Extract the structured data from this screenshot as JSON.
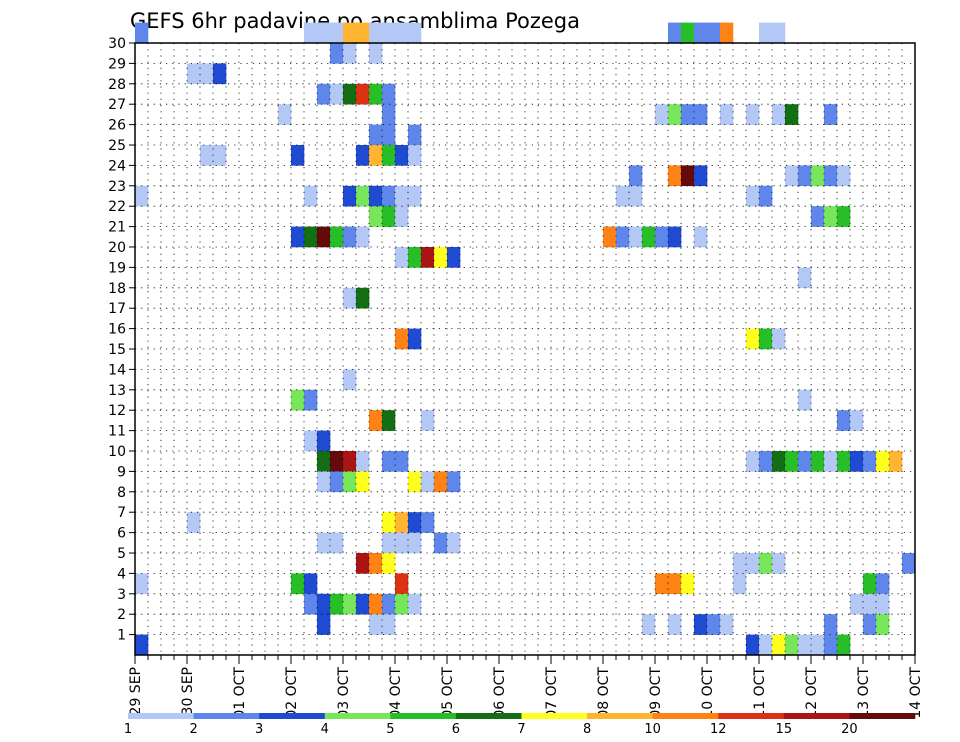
{
  "chart_data": {
    "type": "heatmap",
    "title": "GEFS 6hr padavine po ansamblima Pozega",
    "x_labels": [
      "29 SEP",
      "30 SEP",
      "01 OCT",
      "02 OCT",
      "03 OCT",
      "04 OCT",
      "05 OCT",
      "06 OCT",
      "07 OCT",
      "08 OCT",
      "09 OCT",
      "10 OCT",
      "11 OCT",
      "12 OCT",
      "13 OCT",
      "14 OCT"
    ],
    "x_unit": "day",
    "x_range": [
      0,
      15
    ],
    "y_labels": [
      "1",
      "2",
      "3",
      "4",
      "5",
      "6",
      "7",
      "8",
      "9",
      "10",
      "11",
      "12",
      "13",
      "14",
      "15",
      "16",
      "17",
      "18",
      "19",
      "20",
      "21",
      "22",
      "23",
      "24",
      "25",
      "26",
      "27",
      "28",
      "29",
      "30"
    ],
    "y_range": [
      0,
      30
    ],
    "grid": true,
    "colorbar": {
      "labels": [
        "1",
        "2",
        "3",
        "4",
        "5",
        "6",
        "7",
        "8",
        "10",
        "12",
        "15",
        "20"
      ],
      "colors": [
        "#b4c8f5",
        "#5f87eb",
        "#1e4bd2",
        "#78e65a",
        "#28be28",
        "#146e14",
        "#ffff1e",
        "#ffb432",
        "#ff8214",
        "#dc3214",
        "#aa1414",
        "#640a0a"
      ]
    },
    "cells_note": "each cell: [member (row), 6-hour step from 29 SEP 00Z, color class index 0-11]",
    "cells": [
      [
        30,
        0,
        1
      ],
      [
        30,
        13,
        0
      ],
      [
        30,
        14,
        0
      ],
      [
        30,
        15,
        0
      ],
      [
        30,
        16,
        7
      ],
      [
        30,
        17,
        7
      ],
      [
        30,
        18,
        0
      ],
      [
        30,
        19,
        0
      ],
      [
        30,
        20,
        0
      ],
      [
        30,
        21,
        0
      ],
      [
        30,
        41,
        1
      ],
      [
        30,
        42,
        4
      ],
      [
        30,
        43,
        1
      ],
      [
        30,
        44,
        1
      ],
      [
        30,
        45,
        8
      ],
      [
        30,
        48,
        0
      ],
      [
        30,
        49,
        0
      ],
      [
        29,
        15,
        1
      ],
      [
        29,
        16,
        0
      ],
      [
        29,
        18,
        0
      ],
      [
        28,
        4,
        0
      ],
      [
        28,
        5,
        0
      ],
      [
        28,
        6,
        2
      ],
      [
        27,
        14,
        1
      ],
      [
        27,
        15,
        0
      ],
      [
        27,
        16,
        5
      ],
      [
        27,
        17,
        9
      ],
      [
        27,
        18,
        4
      ],
      [
        27,
        19,
        1
      ],
      [
        26,
        11,
        0
      ],
      [
        26,
        19,
        1
      ],
      [
        26,
        40,
        0
      ],
      [
        26,
        41,
        3
      ],
      [
        26,
        42,
        1
      ],
      [
        26,
        43,
        1
      ],
      [
        26,
        45,
        0
      ],
      [
        26,
        47,
        0
      ],
      [
        26,
        49,
        0
      ],
      [
        26,
        50,
        5
      ],
      [
        26,
        53,
        1
      ],
      [
        25,
        18,
        1
      ],
      [
        25,
        19,
        1
      ],
      [
        25,
        21,
        1
      ],
      [
        24,
        5,
        0
      ],
      [
        24,
        6,
        0
      ],
      [
        24,
        12,
        2
      ],
      [
        24,
        17,
        2
      ],
      [
        24,
        18,
        7
      ],
      [
        24,
        19,
        4
      ],
      [
        24,
        20,
        2
      ],
      [
        24,
        21,
        0
      ],
      [
        23,
        38,
        1
      ],
      [
        23,
        41,
        8
      ],
      [
        23,
        42,
        11
      ],
      [
        23,
        43,
        2
      ],
      [
        23,
        50,
        0
      ],
      [
        23,
        51,
        1
      ],
      [
        23,
        52,
        3
      ],
      [
        23,
        53,
        1
      ],
      [
        23,
        54,
        0
      ],
      [
        22,
        0,
        0
      ],
      [
        22,
        13,
        0
      ],
      [
        22,
        16,
        2
      ],
      [
        22,
        17,
        3
      ],
      [
        22,
        18,
        2
      ],
      [
        22,
        19,
        1
      ],
      [
        22,
        20,
        0
      ],
      [
        22,
        21,
        0
      ],
      [
        22,
        37,
        0
      ],
      [
        22,
        38,
        0
      ],
      [
        22,
        47,
        0
      ],
      [
        22,
        48,
        1
      ],
      [
        21,
        18,
        3
      ],
      [
        21,
        19,
        4
      ],
      [
        21,
        20,
        0
      ],
      [
        21,
        52,
        1
      ],
      [
        21,
        53,
        3
      ],
      [
        21,
        54,
        4
      ],
      [
        20,
        12,
        2
      ],
      [
        20,
        13,
        5
      ],
      [
        20,
        14,
        11
      ],
      [
        20,
        15,
        4
      ],
      [
        20,
        16,
        1
      ],
      [
        20,
        17,
        0
      ],
      [
        20,
        36,
        8
      ],
      [
        20,
        37,
        1
      ],
      [
        20,
        38,
        0
      ],
      [
        20,
        39,
        4
      ],
      [
        20,
        40,
        1
      ],
      [
        20,
        41,
        2
      ],
      [
        20,
        43,
        0
      ],
      [
        19,
        20,
        0
      ],
      [
        19,
        21,
        4
      ],
      [
        19,
        22,
        10
      ],
      [
        19,
        23,
        6
      ],
      [
        19,
        24,
        2
      ],
      [
        18,
        51,
        0
      ],
      [
        17,
        16,
        0
      ],
      [
        17,
        17,
        5
      ],
      [
        15,
        20,
        8
      ],
      [
        15,
        21,
        2
      ],
      [
        15,
        47,
        6
      ],
      [
        15,
        48,
        4
      ],
      [
        15,
        49,
        0
      ],
      [
        13,
        16,
        0
      ],
      [
        12,
        12,
        3
      ],
      [
        12,
        13,
        1
      ],
      [
        12,
        51,
        0
      ],
      [
        11,
        18,
        8
      ],
      [
        11,
        19,
        5
      ],
      [
        11,
        22,
        0
      ],
      [
        11,
        54,
        1
      ],
      [
        11,
        55,
        0
      ],
      [
        10,
        13,
        0
      ],
      [
        10,
        14,
        2
      ],
      [
        9,
        14,
        5
      ],
      [
        9,
        15,
        11
      ],
      [
        9,
        16,
        10
      ],
      [
        9,
        17,
        0
      ],
      [
        9,
        19,
        1
      ],
      [
        9,
        20,
        1
      ],
      [
        9,
        47,
        0
      ],
      [
        9,
        48,
        1
      ],
      [
        9,
        49,
        5
      ],
      [
        9,
        50,
        4
      ],
      [
        9,
        51,
        1
      ],
      [
        9,
        52,
        4
      ],
      [
        9,
        53,
        0
      ],
      [
        9,
        54,
        4
      ],
      [
        9,
        55,
        2
      ],
      [
        9,
        56,
        1
      ],
      [
        9,
        57,
        6
      ],
      [
        9,
        58,
        7
      ],
      [
        8,
        14,
        0
      ],
      [
        8,
        15,
        1
      ],
      [
        8,
        16,
        3
      ],
      [
        8,
        17,
        6
      ],
      [
        8,
        21,
        6
      ],
      [
        8,
        22,
        0
      ],
      [
        8,
        23,
        8
      ],
      [
        8,
        24,
        1
      ],
      [
        6,
        4,
        0
      ],
      [
        6,
        19,
        6
      ],
      [
        6,
        20,
        7
      ],
      [
        6,
        21,
        2
      ],
      [
        6,
        22,
        1
      ],
      [
        5,
        14,
        0
      ],
      [
        5,
        15,
        0
      ],
      [
        5,
        19,
        0
      ],
      [
        5,
        20,
        0
      ],
      [
        5,
        21,
        0
      ],
      [
        5,
        23,
        1
      ],
      [
        5,
        24,
        0
      ],
      [
        4,
        17,
        10
      ],
      [
        4,
        18,
        8
      ],
      [
        4,
        19,
        6
      ],
      [
        4,
        46,
        0
      ],
      [
        4,
        47,
        0
      ],
      [
        4,
        48,
        3
      ],
      [
        4,
        49,
        0
      ],
      [
        4,
        59,
        1
      ],
      [
        3,
        0,
        0
      ],
      [
        3,
        12,
        4
      ],
      [
        3,
        13,
        2
      ],
      [
        3,
        20,
        9
      ],
      [
        3,
        40,
        8
      ],
      [
        3,
        41,
        8
      ],
      [
        3,
        42,
        6
      ],
      [
        3,
        46,
        0
      ],
      [
        3,
        56,
        4
      ],
      [
        3,
        57,
        1
      ],
      [
        2,
        13,
        1
      ],
      [
        2,
        14,
        2
      ],
      [
        2,
        15,
        4
      ],
      [
        2,
        16,
        3
      ],
      [
        2,
        17,
        2
      ],
      [
        2,
        18,
        8
      ],
      [
        2,
        19,
        1
      ],
      [
        2,
        20,
        3
      ],
      [
        2,
        21,
        0
      ],
      [
        2,
        55,
        0
      ],
      [
        2,
        56,
        0
      ],
      [
        2,
        57,
        0
      ],
      [
        1,
        14,
        2
      ],
      [
        1,
        18,
        0
      ],
      [
        1,
        19,
        0
      ],
      [
        1,
        39,
        0
      ],
      [
        1,
        41,
        0
      ],
      [
        1,
        43,
        2
      ],
      [
        1,
        44,
        1
      ],
      [
        1,
        45,
        0
      ],
      [
        1,
        53,
        1
      ],
      [
        1,
        56,
        1
      ],
      [
        1,
        57,
        3
      ],
      [
        0,
        0,
        2
      ],
      [
        0,
        47,
        2
      ],
      [
        0,
        48,
        0
      ],
      [
        0,
        49,
        6
      ],
      [
        0,
        50,
        3
      ],
      [
        0,
        51,
        0
      ],
      [
        0,
        52,
        0
      ],
      [
        0,
        53,
        1
      ],
      [
        0,
        54,
        4
      ]
    ]
  }
}
